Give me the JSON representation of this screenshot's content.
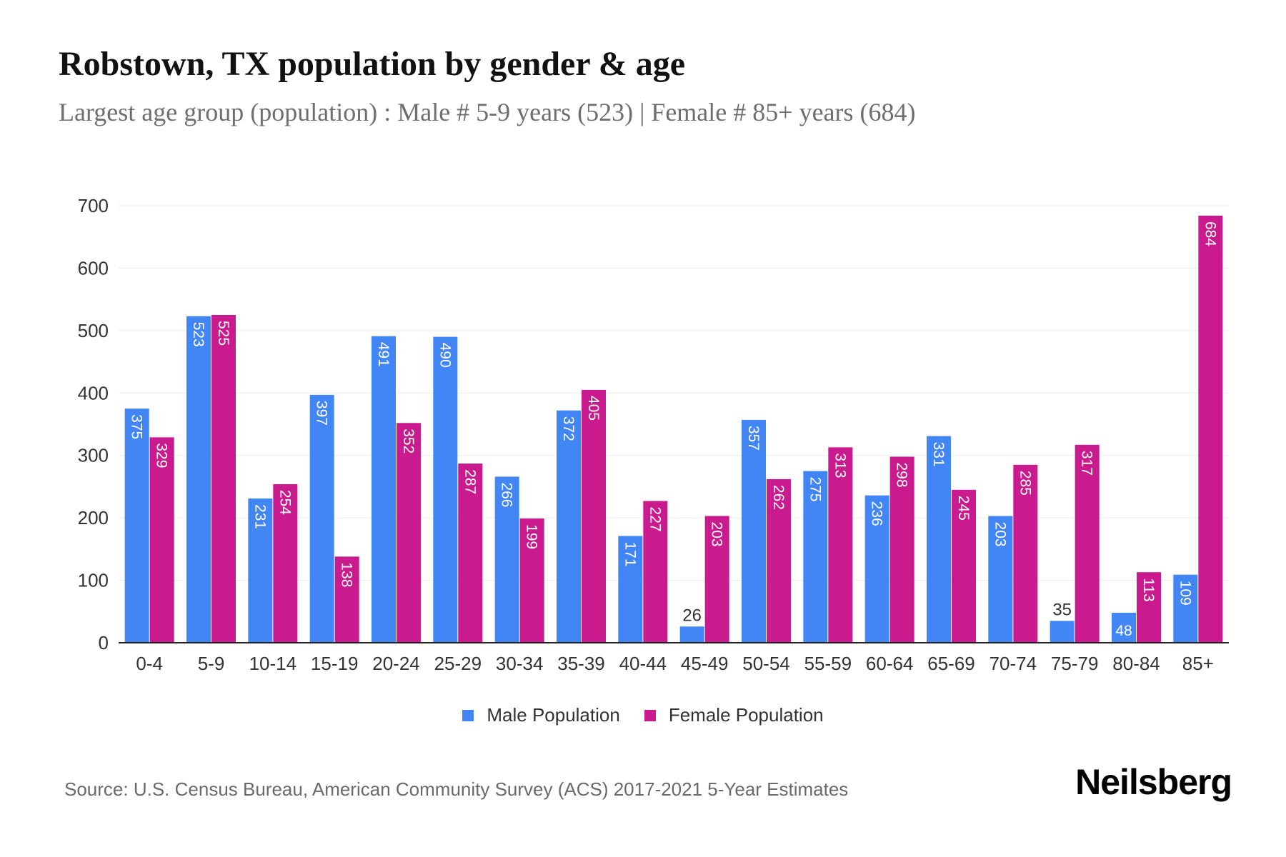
{
  "title": "Robstown, TX population by gender & age",
  "subtitle": "Largest age group (population) : Male # 5-9 years (523) | Female # 85+ years (684)",
  "source": "Source: U.S. Census Bureau, American Community Survey (ACS) 2017-2021 5-Year Estimates",
  "logo": "Neilsberg",
  "chart_data": {
    "type": "bar",
    "categories": [
      "0-4",
      "5-9",
      "10-14",
      "15-19",
      "20-24",
      "25-29",
      "30-34",
      "35-39",
      "40-44",
      "45-49",
      "50-54",
      "55-59",
      "60-64",
      "65-69",
      "70-74",
      "75-79",
      "80-84",
      "85+"
    ],
    "series": [
      {
        "name": "Male Population",
        "color": "#4285f4",
        "values": [
          375,
          523,
          231,
          397,
          491,
          490,
          266,
          372,
          171,
          26,
          357,
          275,
          236,
          331,
          203,
          35,
          48,
          109
        ]
      },
      {
        "name": "Female Population",
        "color": "#c91b8e",
        "values": [
          329,
          525,
          254,
          138,
          352,
          287,
          199,
          405,
          227,
          203,
          262,
          313,
          298,
          245,
          285,
          317,
          113,
          684
        ]
      }
    ],
    "ylim": [
      0,
      700
    ],
    "yticks": [
      0,
      100,
      200,
      300,
      400,
      500,
      600,
      700
    ],
    "grid": true,
    "legend": "bottom"
  }
}
